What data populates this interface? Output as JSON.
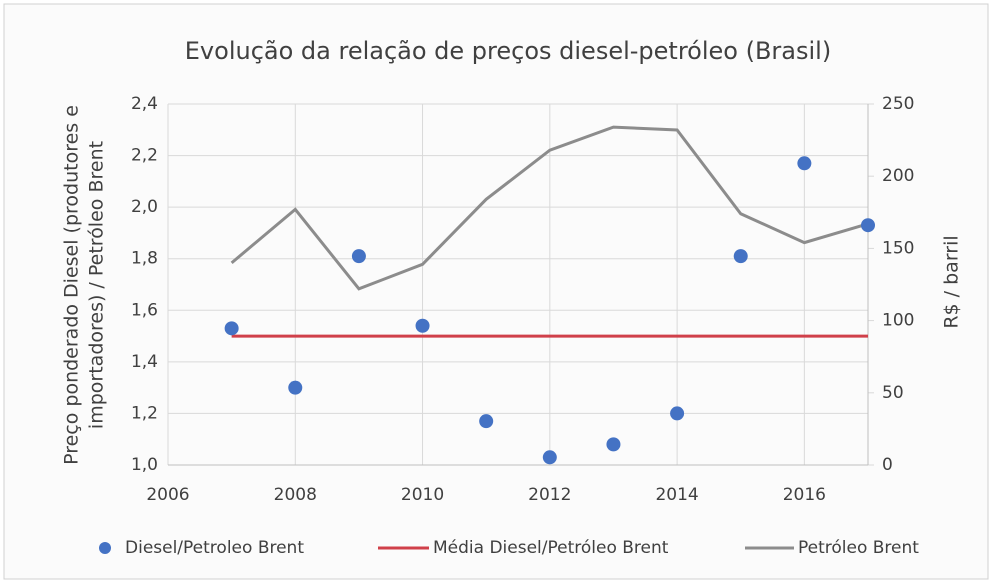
{
  "chart_data": {
    "type": "scatter",
    "title": "Evolução da relação de preços diesel-petróleo (Brasil)",
    "ylabel": [
      "Preço ponderado Diesel (produtores e",
      "importadores) / Petróleo Brent"
    ],
    "y2label": "R$ / barril",
    "x": [
      2007,
      2008,
      2009,
      2010,
      2011,
      2012,
      2013,
      2014,
      2015,
      2016,
      2017
    ],
    "xlim": [
      2006,
      2017
    ],
    "xticks": [
      2006,
      2008,
      2010,
      2012,
      2014,
      2016
    ],
    "ylim": [
      1.0,
      2.4
    ],
    "yticks": [
      {
        "value": 1.0,
        "label": "1,0"
      },
      {
        "value": 1.2,
        "label": "1,2"
      },
      {
        "value": 1.4,
        "label": "1,4"
      },
      {
        "value": 1.6,
        "label": "1,6"
      },
      {
        "value": 1.8,
        "label": "1,8"
      },
      {
        "value": 2.0,
        "label": "2,0"
      },
      {
        "value": 2.2,
        "label": "2,2"
      },
      {
        "value": 2.4,
        "label": "2,4"
      }
    ],
    "y2lim": [
      0,
      250
    ],
    "y2ticks": [
      0,
      50,
      100,
      150,
      200,
      250
    ],
    "grid": true,
    "series": [
      {
        "name": "Diesel/Petroleo Brent",
        "type": "scatter",
        "color": "#4472c4",
        "values": [
          1.53,
          1.3,
          1.81,
          1.54,
          1.17,
          1.03,
          1.08,
          1.2,
          1.81,
          2.17,
          1.93
        ]
      },
      {
        "name": "Média Diesel/Petróleo Brent",
        "type": "line",
        "color": "#d0404a",
        "values": [
          1.5,
          1.5,
          1.5,
          1.5,
          1.5,
          1.5,
          1.5,
          1.5,
          1.5,
          1.5,
          1.5
        ]
      },
      {
        "name": "Petróleo Brent",
        "type": "line",
        "axis": "y2",
        "color": "#8c8c8c",
        "values": [
          140,
          177,
          122,
          139,
          184,
          218,
          234,
          232,
          174,
          154,
          167
        ]
      }
    ]
  }
}
